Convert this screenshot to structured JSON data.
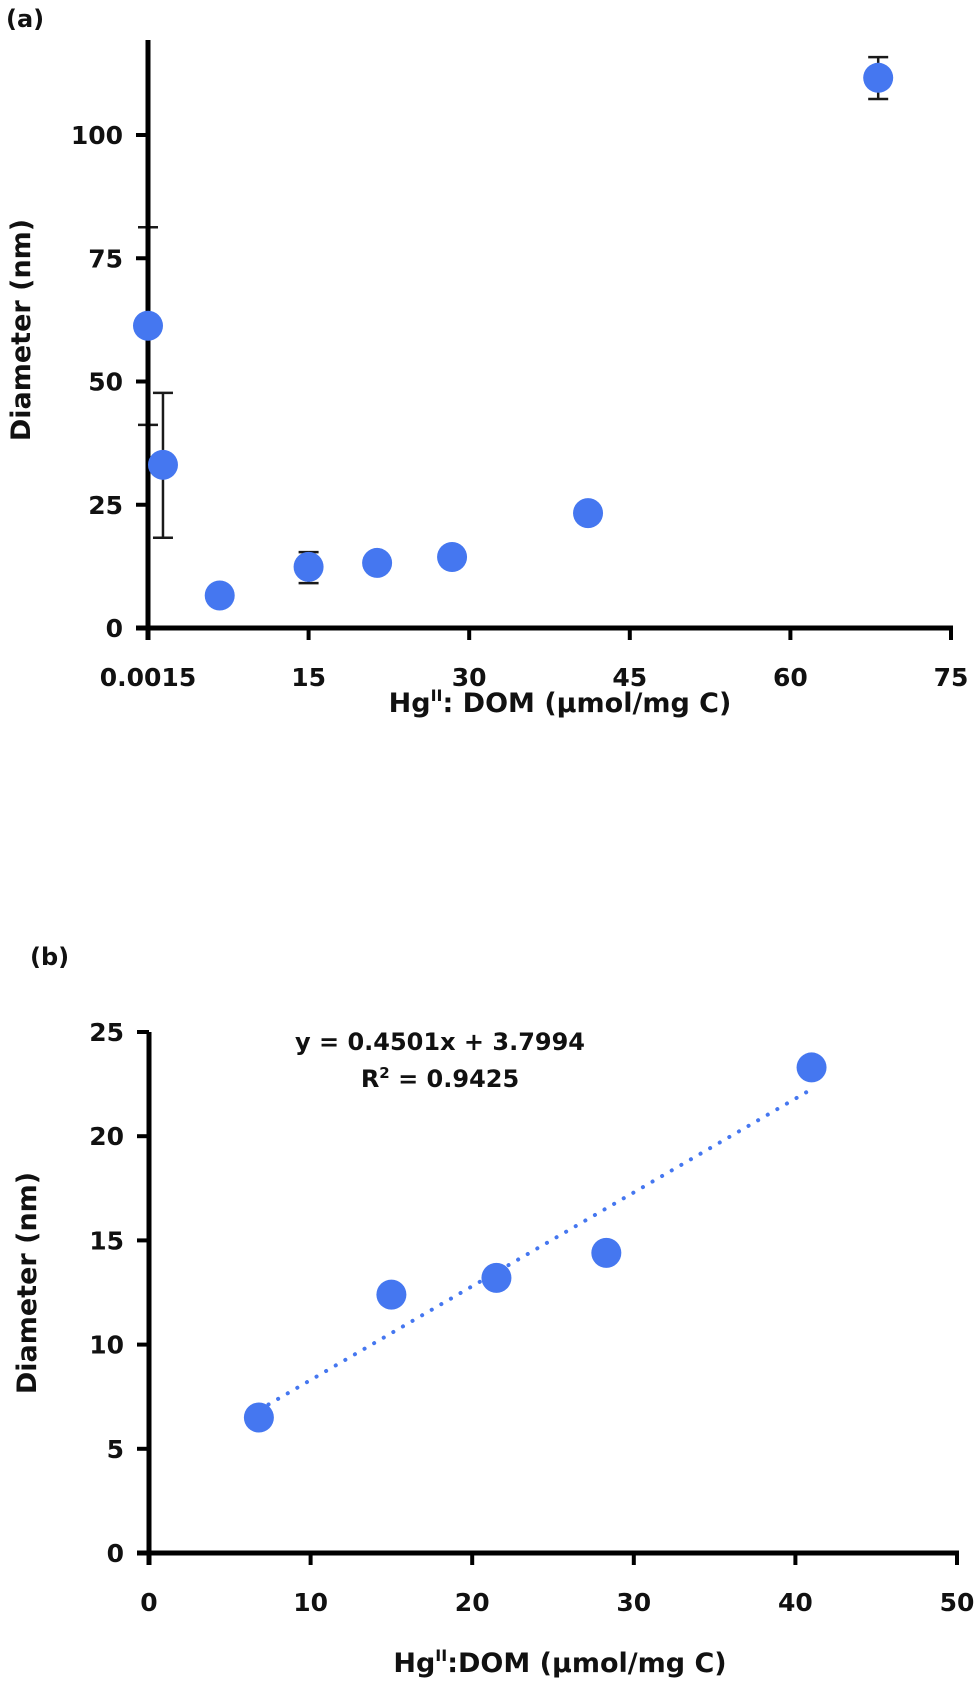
{
  "chart_data": [
    {
      "id": "a",
      "type": "scatter",
      "panel_label": "(a)",
      "title": "",
      "xlabel": "Hg",
      "xlabel_sup": "II",
      "xlabel_rest": ": DOM (µmol/mg C)",
      "ylabel": "Diameter  (nm)",
      "xlim": [
        0.0015,
        75
      ],
      "ylim": [
        0,
        100
      ],
      "y_extends_to": 115,
      "xticks": [
        0.0015,
        15,
        30,
        45,
        60,
        75
      ],
      "xtick_labels": [
        "0.0015",
        "15",
        "30",
        "45",
        "60",
        "75"
      ],
      "yticks": [
        0,
        25,
        50,
        75,
        100
      ],
      "ytick_labels": [
        "0",
        "25",
        "50",
        "75",
        "100"
      ],
      "grid": false,
      "legend": "none",
      "marker_color": "#4577f0",
      "series": [
        {
          "name": "Diameter",
          "points": [
            {
              "x": 0.0015,
              "y": 61.3,
              "err_low": 41.2,
              "err_high": 81.3
            },
            {
              "x": 1.4,
              "y": 33.1,
              "err_low": 18.3,
              "err_high": 47.7
            },
            {
              "x": 6.7,
              "y": 6.6,
              "err_low": null,
              "err_high": null
            },
            {
              "x": 15.0,
              "y": 12.4,
              "err_low": 9.1,
              "err_high": 15.4
            },
            {
              "x": 21.4,
              "y": 13.2,
              "err_low": null,
              "err_high": null
            },
            {
              "x": 28.4,
              "y": 14.4,
              "err_low": null,
              "err_high": null
            },
            {
              "x": 41.1,
              "y": 23.3,
              "err_low": null,
              "err_high": null
            },
            {
              "x": 68.2,
              "y": 111.6,
              "err_low": 107.3,
              "err_high": 115.8
            }
          ]
        }
      ]
    },
    {
      "id": "b",
      "type": "scatter",
      "panel_label": "(b)",
      "title": "",
      "xlabel": "Hg",
      "xlabel_sup": "II",
      "xlabel_rest": ":DOM (µmol/mg C)",
      "ylabel": "Diameter (nm)",
      "xlim": [
        0,
        50
      ],
      "ylim": [
        0,
        25
      ],
      "xticks": [
        0,
        10,
        20,
        30,
        40,
        50
      ],
      "xtick_labels": [
        "0",
        "10",
        "20",
        "30",
        "40",
        "50"
      ],
      "yticks": [
        0,
        5,
        10,
        15,
        20,
        25
      ],
      "ytick_labels": [
        "0",
        "5",
        "10",
        "15",
        "20",
        "25"
      ],
      "grid": false,
      "legend": "none",
      "marker_color": "#4577f0",
      "series": [
        {
          "name": "Diameter",
          "points": [
            {
              "x": 6.8,
              "y": 6.5
            },
            {
              "x": 15.0,
              "y": 12.4
            },
            {
              "x": 21.5,
              "y": 13.2
            },
            {
              "x": 28.3,
              "y": 14.4
            },
            {
              "x": 41.0,
              "y": 23.3
            }
          ]
        }
      ],
      "trendline": {
        "type": "linear",
        "slope": 0.4501,
        "intercept": 3.7994,
        "x_range": [
          6.8,
          41.0
        ],
        "style": "dotted",
        "color": "#4577f0",
        "equation_label": "y = 0.4501x + 3.7994",
        "r2_label_prefix": "R",
        "r2_label_sup": "2",
        "r2_label_rest": " = 0.9425"
      }
    }
  ]
}
